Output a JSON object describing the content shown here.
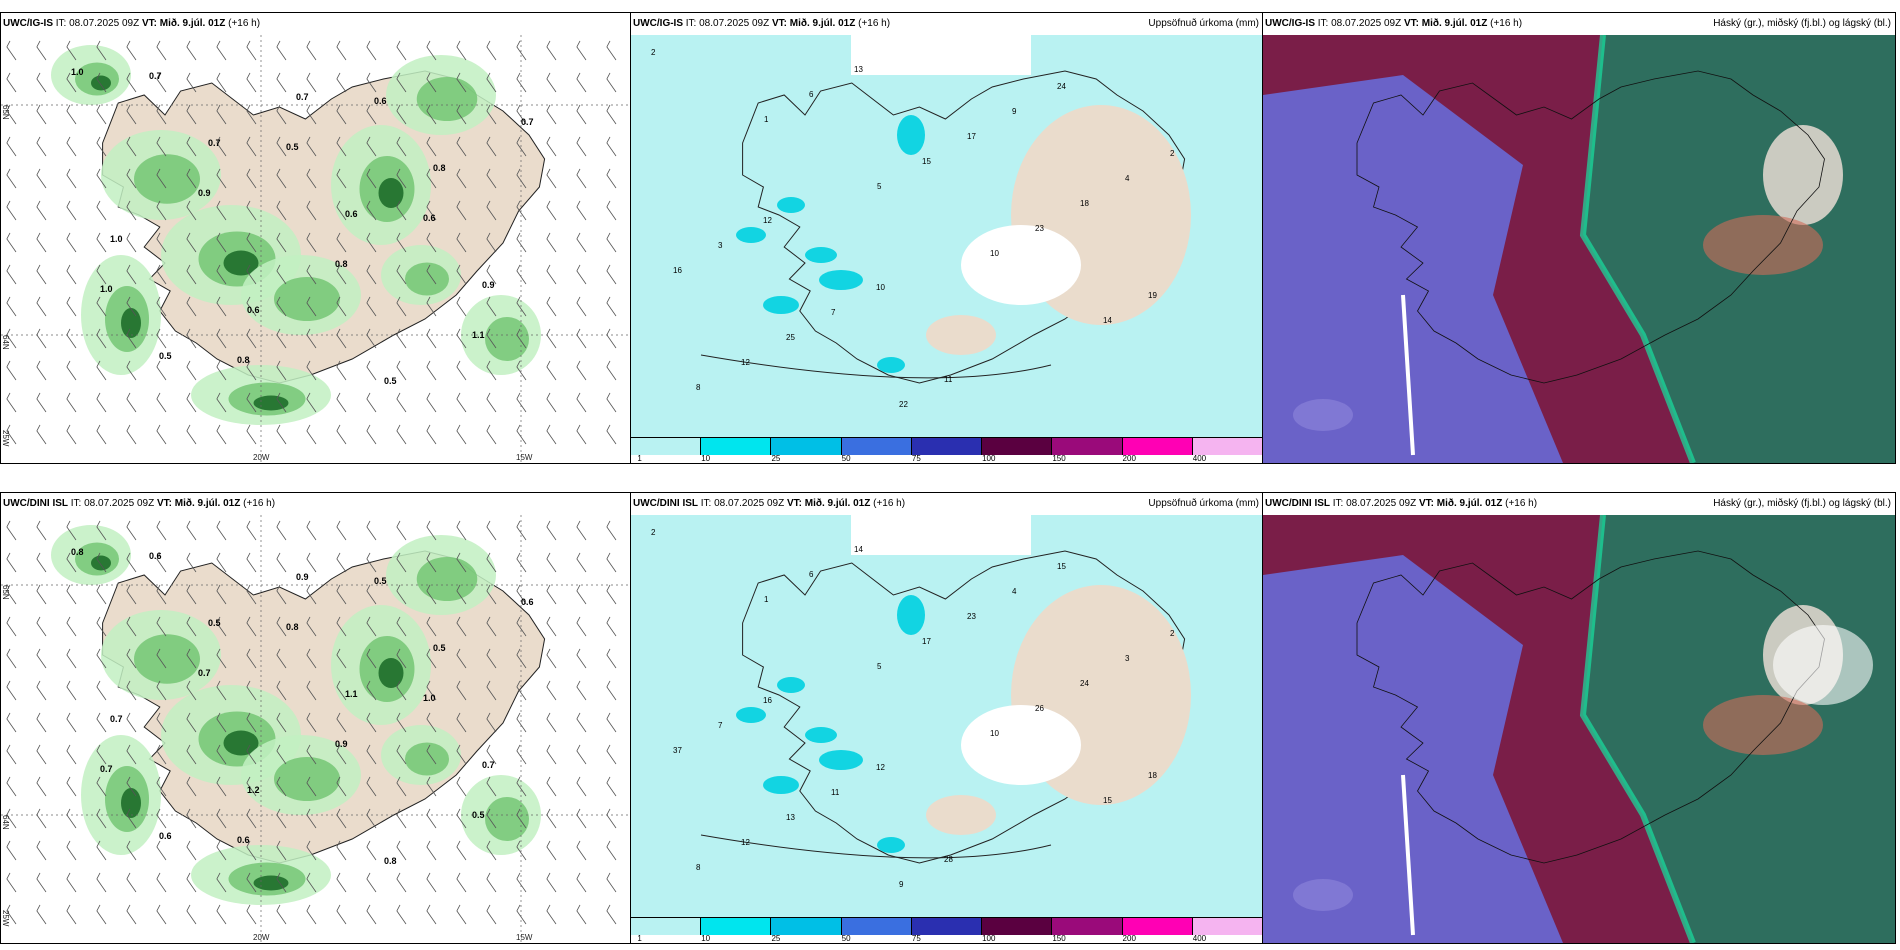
{
  "panels": [
    {
      "id": "p1",
      "model": "UWC/IG-IS",
      "it_label": "IT:",
      "it": "08.07.2025 09Z",
      "vt_label": "VT:",
      "vt": "Mið. 9.júl. 01Z",
      "lead": "(+16 h)",
      "title_right": ""
    },
    {
      "id": "p2",
      "model": "UWC/IG-IS",
      "it_label": "IT:",
      "it": "08.07.2025 09Z",
      "vt_label": "VT:",
      "vt": "Mið. 9.júl. 01Z",
      "lead": "(+16 h)",
      "title_right": "Uppsöfnuð úrkoma (mm)"
    },
    {
      "id": "p3",
      "model": "UWC/IG-IS",
      "it_label": "IT:",
      "it": "08.07.2025 09Z",
      "vt_label": "VT:",
      "vt": "Mið. 9.júl. 01Z",
      "lead": "(+16 h)",
      "title_right": "Háský (gr.), miðský (fj.bl.) og lágský (bl.)"
    },
    {
      "id": "p4",
      "model": "UWC/DINI ISL",
      "it_label": "IT:",
      "it": "08.07.2025 09Z",
      "vt_label": "VT:",
      "vt": "Mið. 9.júl. 01Z",
      "lead": "(+16 h)",
      "title_right": ""
    },
    {
      "id": "p5",
      "model": "UWC/DINI ISL",
      "it_label": "IT:",
      "it": "08.07.2025 09Z",
      "vt_label": "VT:",
      "vt": "Mið. 9.júl. 01Z",
      "lead": "(+16 h)",
      "title_right": "Uppsöfnuð úrkoma (mm)"
    },
    {
      "id": "p6",
      "model": "UWC/DINI ISL",
      "it_label": "IT:",
      "it": "08.07.2025 09Z",
      "vt_label": "VT:",
      "vt": "Mið. 9.júl. 01Z",
      "lead": "(+16 h)",
      "title_right": "Háský (gr.), miðský (fj.bl.) og lágský (bl.)"
    }
  ],
  "legend": {
    "ticks": [
      "1",
      "10",
      "25",
      "50",
      "75",
      "100",
      "150",
      "200",
      "400"
    ],
    "colors": [
      "#b9f2f2",
      "#00e5ee",
      "#00bfe6",
      "#3a6fe0",
      "#2a2fb0",
      "#5a0040",
      "#9a0a7a",
      "#ff00b4",
      "#f5b4f0"
    ]
  },
  "map_axes": {
    "lat_label": "65N",
    "lat_label_south": "64N",
    "lon_labels": [
      "20W",
      "15W"
    ],
    "edge_lon": "25W"
  },
  "colors": {
    "land": "#eadccc",
    "precip_light": "#c2f0c2",
    "precip_mid": "#6fc36f",
    "precip_dark": "#1e6e2a",
    "accum_sea": "#b9f2f2",
    "accum_mid": "#00d0e0",
    "cloud_low": "#6a62c8",
    "cloud_mid": "#7a1e48",
    "cloud_high": "#2e6e5e",
    "cloud_edge": "#18e0a0"
  },
  "precip_labels": {
    "p1": [
      "1.0",
      "0.7",
      "0.6",
      "0.9",
      "0.5",
      "0.7",
      "0.8",
      "1.0",
      "0.6",
      "0.5",
      "0.7",
      "0.9",
      "0.8",
      "1.1",
      "0.7",
      "0.5",
      "0.6",
      "1.0",
      "0.8",
      "0.6"
    ],
    "p4": [
      "0.8",
      "0.5",
      "1.1",
      "0.7",
      "0.6",
      "0.9",
      "0.5",
      "0.7",
      "1.2",
      "0.8",
      "0.6",
      "0.7",
      "0.9",
      "0.5",
      "0.6",
      "0.8",
      "1.0",
      "0.7",
      "0.6",
      "0.5"
    ]
  },
  "accum_labels": {
    "p2": [
      "2",
      "1",
      "5",
      "10",
      "14",
      "8",
      "6",
      "15",
      "23",
      "19",
      "12",
      "13",
      "17",
      "18",
      "16",
      "25",
      "22",
      "9",
      "4",
      "3",
      "7",
      "11",
      "24",
      "2",
      "12",
      "10"
    ],
    "p5": [
      "2",
      "1",
      "5",
      "10",
      "15",
      "8",
      "6",
      "17",
      "26",
      "18",
      "12",
      "14",
      "23",
      "24",
      "37",
      "13",
      "9",
      "4",
      "3",
      "7",
      "11",
      "28",
      "15",
      "2",
      "16",
      "12"
    ]
  }
}
